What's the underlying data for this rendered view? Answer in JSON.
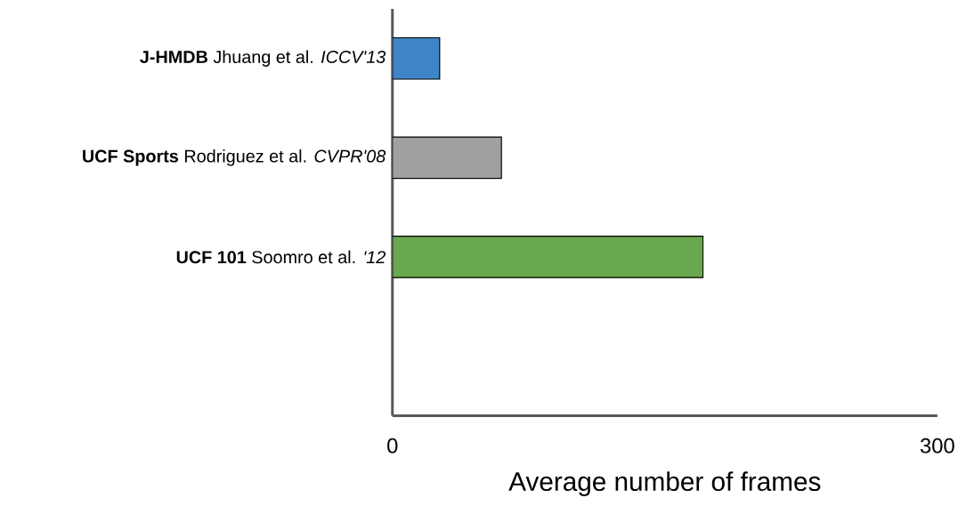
{
  "chart_data": {
    "type": "bar",
    "orientation": "horizontal",
    "xlabel": "Average number of frames",
    "categories": [
      "**J-HMDB** Jhuang et al. *ICCV'13*",
      "**UCF Sports** Rodriguez et al. *CVPR'08*",
      "**UCF 101** Soomro et al. *'12*",
      null
    ],
    "values": [
      26,
      60,
      171,
      null
    ],
    "colors": [
      "#3d85c6",
      "#a0a0a0",
      "#6aa84f",
      "#6aa84f"
    ],
    "xlim": [
      0,
      300
    ],
    "xticks": [
      0,
      300
    ],
    "grid": false
  }
}
